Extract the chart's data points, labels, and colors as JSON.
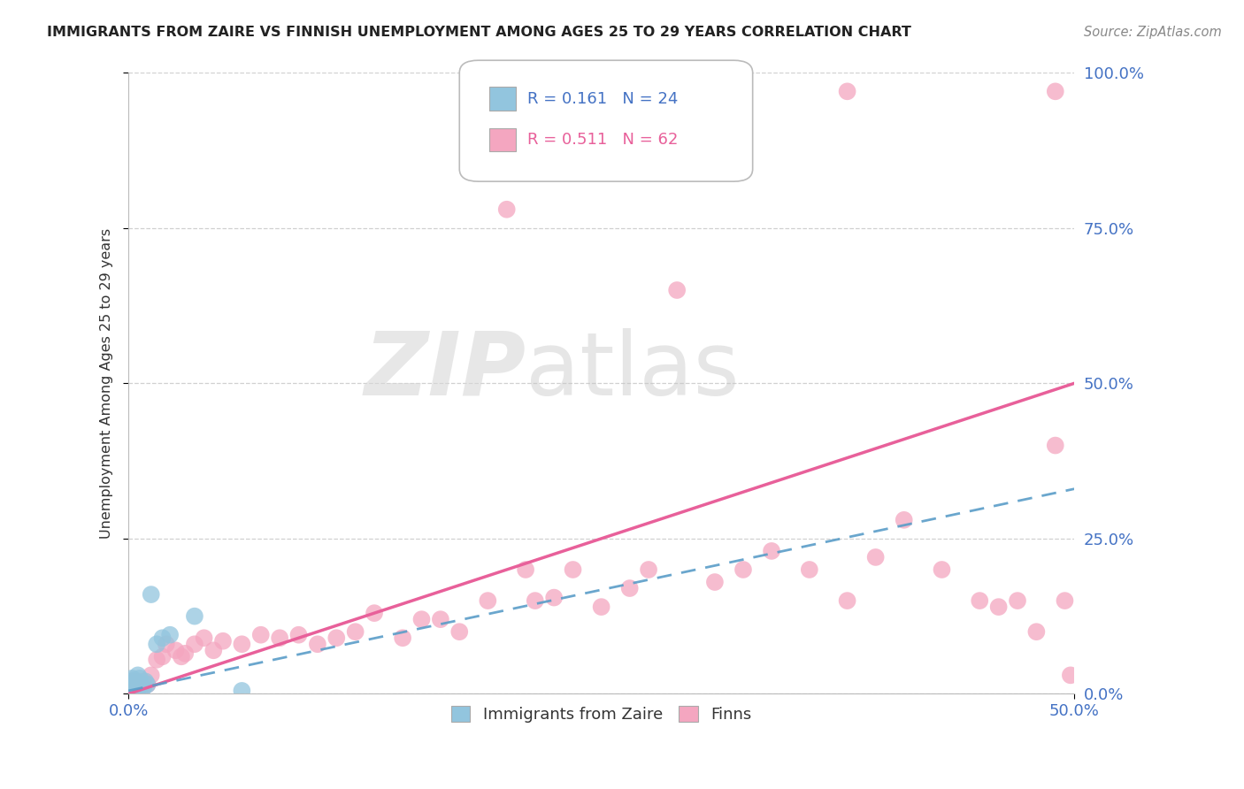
{
  "title": "IMMIGRANTS FROM ZAIRE VS FINNISH UNEMPLOYMENT AMONG AGES 25 TO 29 YEARS CORRELATION CHART",
  "source": "Source: ZipAtlas.com",
  "ylabel": "Unemployment Among Ages 25 to 29 years",
  "xlim": [
    0.0,
    0.5
  ],
  "ylim": [
    0.0,
    1.0
  ],
  "xtick_positions": [
    0.0,
    0.5
  ],
  "xtick_labels": [
    "0.0%",
    "50.0%"
  ],
  "ytick_positions": [
    0.0,
    0.25,
    0.5,
    0.75,
    1.0
  ],
  "ytick_labels": [
    "0.0%",
    "25.0%",
    "50.0%",
    "75.0%",
    "100.0%"
  ],
  "legend_r_blue": "R = 0.161",
  "legend_n_blue": "N = 24",
  "legend_r_pink": "R = 0.511",
  "legend_n_pink": "N = 62",
  "blue_color": "#92c5de",
  "pink_color": "#f4a6c0",
  "blue_line_color": "#5a9dc8",
  "pink_line_color": "#e8609a",
  "watermark_zip": "ZIP",
  "watermark_atlas": "atlas",
  "background_color": "#ffffff",
  "grid_color": "#d0d0d0",
  "tick_color": "#4472c4",
  "blue_x": [
    0.001,
    0.001,
    0.002,
    0.002,
    0.002,
    0.003,
    0.003,
    0.003,
    0.004,
    0.004,
    0.005,
    0.005,
    0.006,
    0.006,
    0.007,
    0.008,
    0.009,
    0.01,
    0.012,
    0.015,
    0.018,
    0.022,
    0.035,
    0.06
  ],
  "blue_y": [
    0.005,
    0.012,
    0.008,
    0.018,
    0.025,
    0.005,
    0.015,
    0.022,
    0.01,
    0.02,
    0.008,
    0.03,
    0.012,
    0.025,
    0.015,
    0.01,
    0.02,
    0.015,
    0.16,
    0.08,
    0.09,
    0.095,
    0.125,
    0.005
  ],
  "pink_x": [
    0.001,
    0.002,
    0.002,
    0.003,
    0.003,
    0.004,
    0.005,
    0.005,
    0.006,
    0.007,
    0.008,
    0.01,
    0.012,
    0.015,
    0.018,
    0.02,
    0.025,
    0.028,
    0.03,
    0.035,
    0.04,
    0.045,
    0.05,
    0.06,
    0.07,
    0.08,
    0.09,
    0.1,
    0.11,
    0.12,
    0.13,
    0.145,
    0.155,
    0.165,
    0.175,
    0.19,
    0.2,
    0.21,
    0.215,
    0.225,
    0.235,
    0.25,
    0.265,
    0.275,
    0.29,
    0.31,
    0.325,
    0.34,
    0.36,
    0.38,
    0.395,
    0.41,
    0.43,
    0.45,
    0.46,
    0.47,
    0.48,
    0.49,
    0.495,
    0.498,
    0.38,
    0.49
  ],
  "pink_y": [
    0.005,
    0.01,
    0.02,
    0.008,
    0.018,
    0.012,
    0.005,
    0.02,
    0.015,
    0.01,
    0.02,
    0.015,
    0.03,
    0.055,
    0.06,
    0.08,
    0.07,
    0.06,
    0.065,
    0.08,
    0.09,
    0.07,
    0.085,
    0.08,
    0.095,
    0.09,
    0.095,
    0.08,
    0.09,
    0.1,
    0.13,
    0.09,
    0.12,
    0.12,
    0.1,
    0.15,
    0.78,
    0.2,
    0.15,
    0.155,
    0.2,
    0.14,
    0.17,
    0.2,
    0.65,
    0.18,
    0.2,
    0.23,
    0.2,
    0.15,
    0.22,
    0.28,
    0.2,
    0.15,
    0.14,
    0.15,
    0.1,
    0.4,
    0.15,
    0.03,
    0.97,
    0.97
  ],
  "pink_line_start_y": 0.0,
  "pink_line_end_y": 0.5,
  "blue_line_start_y": 0.005,
  "blue_line_end_y": 0.33
}
